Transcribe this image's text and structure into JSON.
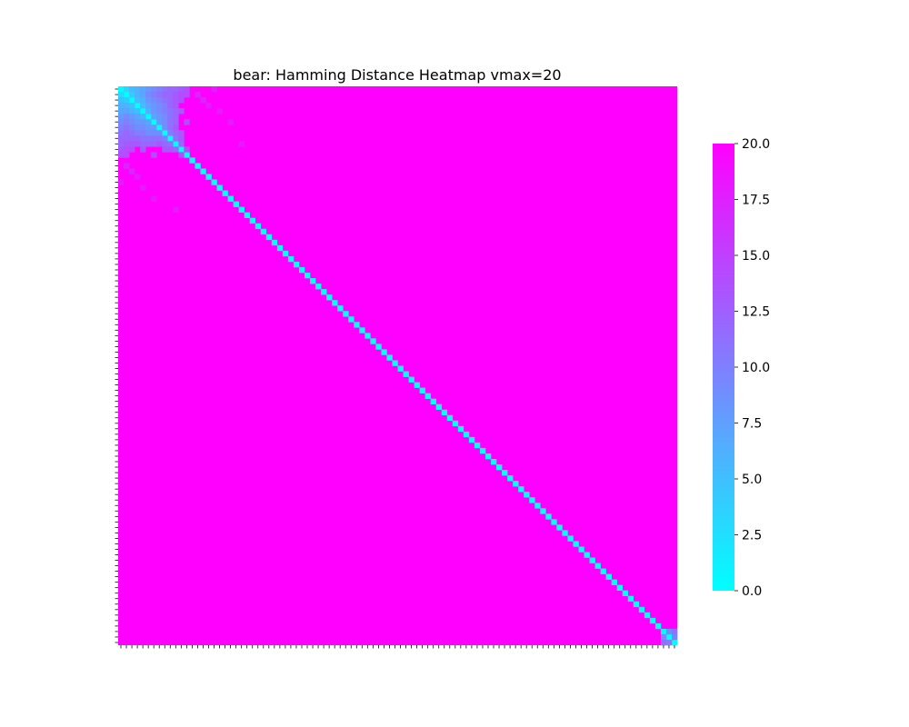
{
  "chart_data": {
    "type": "heatmap",
    "title": "bear: Hamming Distance Heatmap vmax=20",
    "vmin": 0,
    "vmax": 20,
    "colormap": [
      "#00ffff",
      "#ff00ff"
    ],
    "colorbar_ticks": [
      "0.0",
      "2.5",
      "5.0",
      "7.5",
      "10.0",
      "12.5",
      "15.0",
      "17.5",
      "20.0"
    ],
    "colorbar_tick_values": [
      0,
      2.5,
      5,
      7.5,
      10,
      12.5,
      15,
      17.5,
      20
    ],
    "n": 102,
    "diagonal_value": 0,
    "off_diagonal_value": 20,
    "near_values": [
      [
        0,
        1,
        3
      ],
      [
        0,
        2,
        5
      ],
      [
        0,
        3,
        6
      ],
      [
        0,
        4,
        7
      ],
      [
        0,
        5,
        8
      ],
      [
        0,
        6,
        9
      ],
      [
        0,
        7,
        10
      ],
      [
        0,
        8,
        11
      ],
      [
        0,
        9,
        12
      ],
      [
        0,
        10,
        12
      ],
      [
        0,
        11,
        13
      ],
      [
        0,
        12,
        14
      ],
      [
        1,
        2,
        4
      ],
      [
        1,
        3,
        6
      ],
      [
        1,
        4,
        7
      ],
      [
        1,
        5,
        9
      ],
      [
        1,
        6,
        10
      ],
      [
        1,
        7,
        11
      ],
      [
        1,
        8,
        12
      ],
      [
        1,
        9,
        12
      ],
      [
        1,
        10,
        13
      ],
      [
        1,
        11,
        14
      ],
      [
        1,
        12,
        14
      ],
      [
        2,
        3,
        5
      ],
      [
        2,
        4,
        6
      ],
      [
        2,
        5,
        8
      ],
      [
        2,
        6,
        9
      ],
      [
        2,
        7,
        10
      ],
      [
        2,
        8,
        11
      ],
      [
        2,
        9,
        12
      ],
      [
        2,
        10,
        13
      ],
      [
        2,
        11,
        14
      ],
      [
        3,
        4,
        5
      ],
      [
        3,
        5,
        7
      ],
      [
        3,
        6,
        8
      ],
      [
        3,
        7,
        9
      ],
      [
        3,
        8,
        10
      ],
      [
        3,
        9,
        12
      ],
      [
        3,
        10,
        13
      ],
      [
        4,
        5,
        6
      ],
      [
        4,
        6,
        8
      ],
      [
        4,
        7,
        9
      ],
      [
        4,
        8,
        10
      ],
      [
        4,
        9,
        11
      ],
      [
        4,
        10,
        12
      ],
      [
        4,
        11,
        13
      ],
      [
        5,
        6,
        7
      ],
      [
        5,
        7,
        8
      ],
      [
        5,
        8,
        9
      ],
      [
        5,
        9,
        11
      ],
      [
        5,
        10,
        12
      ],
      [
        6,
        7,
        8
      ],
      [
        6,
        8,
        9
      ],
      [
        6,
        9,
        11
      ],
      [
        6,
        10,
        12
      ],
      [
        6,
        12,
        14
      ],
      [
        7,
        8,
        9
      ],
      [
        7,
        9,
        11
      ],
      [
        7,
        10,
        13
      ],
      [
        8,
        9,
        10
      ],
      [
        8,
        10,
        12
      ],
      [
        8,
        11,
        13
      ],
      [
        9,
        10,
        11
      ],
      [
        9,
        11,
        13
      ],
      [
        10,
        11,
        12
      ],
      [
        11,
        12,
        14
      ],
      [
        1,
        14,
        17
      ],
      [
        2,
        15,
        17
      ],
      [
        3,
        16,
        18
      ],
      [
        0,
        17,
        18
      ],
      [
        4,
        18,
        18
      ],
      [
        6,
        20,
        18
      ],
      [
        10,
        22,
        18
      ],
      [
        99,
        100,
        9
      ],
      [
        99,
        101,
        11
      ],
      [
        100,
        101,
        10
      ]
    ]
  }
}
